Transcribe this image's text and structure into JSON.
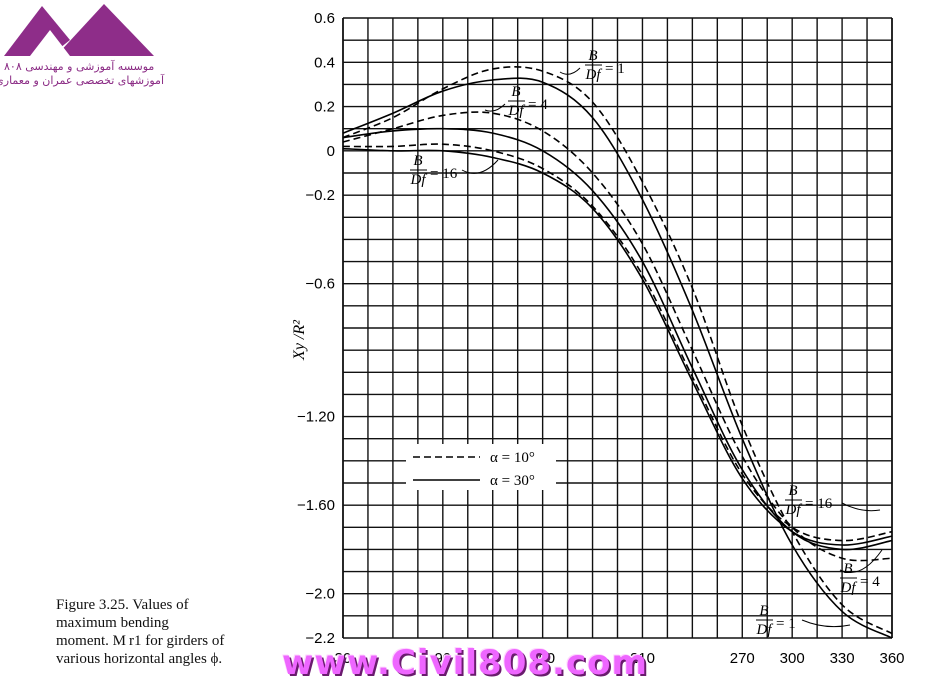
{
  "logo": {
    "line1": "موسسه آموزشی و مهندسی ۸۰۸",
    "line2": "آموزشهای تخصصی عمران و معماری"
  },
  "caption": {
    "lines": [
      "Figure 3.25. Values of",
      "maximum bending",
      "moment. M r1 for girders of",
      "various horizontal angles ϕ."
    ]
  },
  "watermark": "www.Civil808.com",
  "chart_data": {
    "type": "line",
    "title": "",
    "xlabel": "",
    "ylabel": "Xy /R²",
    "xlim": [
      30,
      360
    ],
    "ylim": [
      -2.2,
      0.6
    ],
    "x_ticks": [
      30,
      90,
      150,
      210,
      270,
      300,
      330,
      360
    ],
    "x_tick_labels": [
      "30",
      "90",
      "150",
      "210",
      "270",
      "300",
      "330",
      "360"
    ],
    "y_ticks": [
      0.6,
      0.4,
      0.2,
      0,
      -0.2,
      -0.6,
      -1.2,
      -1.6,
      -2.0,
      -2.2
    ],
    "y_tick_labels": [
      "0.6",
      "0.4",
      "0.2",
      "0",
      "−0.2",
      "−0.6",
      "−1.20",
      "−1.60",
      "−2.0",
      "−2.2"
    ],
    "grid": true,
    "legend": {
      "position": "center-left",
      "entries": [
        {
          "label": "α = 10°",
          "style": "dashed"
        },
        {
          "label": "α = 30°",
          "style": "solid"
        }
      ]
    },
    "annotations": [
      {
        "text": "B/Df = 1",
        "num": "B",
        "den": "Df",
        "value": "1"
      },
      {
        "text": "B/Df = 4",
        "num": "B",
        "den": "Df",
        "value": "4"
      },
      {
        "text": "B/Df = 16",
        "num": "B",
        "den": "Df",
        "value": "16"
      },
      {
        "text": "B/Df = 16",
        "num": "B",
        "den": "Df",
        "value": "16"
      },
      {
        "text": "B/Df = 4",
        "num": "B",
        "den": "Df",
        "value": "4"
      },
      {
        "text": "B/Df = 1",
        "num": "B",
        "den": "Df",
        "value": "1"
      }
    ],
    "series": [
      {
        "style": "dashed",
        "x": [
          30,
          60,
          90,
          120,
          150,
          180,
          210,
          240,
          270,
          300,
          330,
          360
        ],
        "y": [
          0.06,
          0.15,
          0.28,
          0.37,
          0.36,
          0.22,
          -0.14,
          -0.62,
          -1.24,
          -1.72,
          -2.05,
          -2.18
        ]
      },
      {
        "style": "solid",
        "x": [
          30,
          60,
          90,
          120,
          150,
          180,
          210,
          240,
          270,
          300,
          330,
          360
        ],
        "y": [
          0.08,
          0.17,
          0.27,
          0.32,
          0.31,
          0.15,
          -0.22,
          -0.72,
          -1.3,
          -1.78,
          -2.08,
          -2.2
        ]
      },
      {
        "style": "dashed",
        "x": [
          30,
          60,
          90,
          120,
          150,
          180,
          210,
          240,
          270,
          300,
          330,
          360
        ],
        "y": [
          0.04,
          0.1,
          0.16,
          0.17,
          0.09,
          -0.1,
          -0.42,
          -0.9,
          -1.38,
          -1.7,
          -1.84,
          -1.84
        ]
      },
      {
        "style": "solid",
        "x": [
          30,
          60,
          90,
          120,
          150,
          180,
          210,
          240,
          270,
          300,
          330,
          360
        ],
        "y": [
          0.06,
          0.09,
          0.1,
          0.08,
          0.0,
          -0.18,
          -0.5,
          -0.98,
          -1.44,
          -1.72,
          -1.8,
          -1.76
        ]
      },
      {
        "style": "dashed",
        "x": [
          30,
          60,
          90,
          120,
          150,
          180,
          210,
          240,
          270,
          300,
          330,
          360
        ],
        "y": [
          0.02,
          0.02,
          0.03,
          0.0,
          -0.08,
          -0.25,
          -0.56,
          -1.02,
          -1.46,
          -1.7,
          -1.76,
          -1.72
        ]
      },
      {
        "style": "solid",
        "x": [
          30,
          60,
          90,
          120,
          150,
          180,
          210,
          240,
          270,
          300,
          330,
          360
        ],
        "y": [
          0.01,
          0.0,
          0.0,
          -0.03,
          -0.1,
          -0.26,
          -0.58,
          -1.04,
          -1.48,
          -1.72,
          -1.78,
          -1.74
        ]
      }
    ]
  }
}
